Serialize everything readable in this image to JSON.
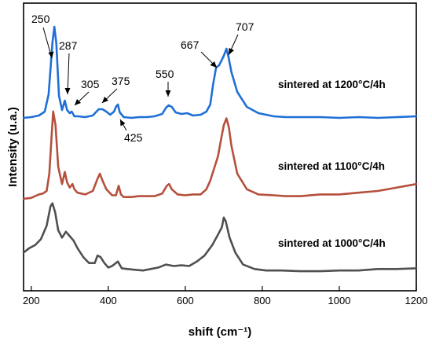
{
  "chart_data": {
    "type": "line",
    "title": "",
    "xlabel": "shift (cm⁻¹)",
    "ylabel": "Intensity (u.a.)",
    "xlim": [
      180,
      1200
    ],
    "xticks": [
      200,
      400,
      600,
      800,
      1000,
      1200
    ],
    "y_ticks_shown": false,
    "grid": false,
    "series": [
      {
        "name": "sintered at 1200°C/4h",
        "color": "#1f6fd6",
        "x": [
          180,
          200,
          220,
          235,
          245,
          255,
          260,
          265,
          272,
          280,
          287,
          293,
          300,
          305,
          312,
          322,
          340,
          360,
          375,
          385,
          395,
          405,
          415,
          420,
          425,
          430,
          440,
          460,
          480,
          500,
          520,
          540,
          550,
          557,
          565,
          575,
          590,
          605,
          620,
          640,
          655,
          665,
          672,
          680,
          688,
          695,
          700,
          707,
          712,
          720,
          735,
          760,
          790,
          830,
          860,
          900,
          950,
          1000,
          1050,
          1100,
          1150,
          1200
        ],
        "y": [
          0.02,
          0.03,
          0.05,
          0.1,
          0.32,
          0.98,
          1.18,
          0.97,
          0.3,
          0.12,
          0.24,
          0.12,
          0.08,
          0.1,
          0.04,
          0.04,
          0.03,
          0.05,
          0.13,
          0.13,
          0.1,
          0.06,
          0.1,
          0.16,
          0.19,
          0.09,
          0.03,
          0.02,
          0.03,
          0.03,
          0.04,
          0.07,
          0.15,
          0.18,
          0.16,
          0.09,
          0.07,
          0.08,
          0.05,
          0.06,
          0.1,
          0.19,
          0.44,
          0.66,
          0.69,
          0.76,
          0.81,
          0.9,
          0.8,
          0.6,
          0.35,
          0.16,
          0.08,
          0.04,
          0.03,
          0.03,
          0.03,
          0.02,
          0.03,
          0.02,
          0.03,
          0.04
        ]
      },
      {
        "name": "sintered at 1100°C/4h",
        "color": "#b5503c",
        "x": [
          180,
          200,
          210,
          220,
          230,
          240,
          247,
          253,
          257,
          263,
          270,
          280,
          287,
          293,
          300,
          307,
          312,
          320,
          340,
          360,
          372,
          378,
          385,
          395,
          410,
          420,
          427,
          433,
          440,
          460,
          480,
          500,
          520,
          540,
          552,
          558,
          565,
          580,
          600,
          620,
          640,
          655,
          665,
          675,
          685,
          693,
          700,
          707,
          713,
          720,
          735,
          760,
          790,
          830,
          860,
          900,
          950,
          1000,
          1050,
          1100,
          1150,
          1200
        ],
        "y": [
          0.01,
          0.02,
          0.04,
          0.06,
          0.07,
          0.1,
          0.3,
          0.75,
          1.02,
          0.86,
          0.38,
          0.18,
          0.32,
          0.2,
          0.14,
          0.18,
          0.12,
          0.08,
          0.06,
          0.1,
          0.24,
          0.3,
          0.22,
          0.12,
          0.05,
          0.05,
          0.16,
          0.06,
          0.03,
          0.03,
          0.04,
          0.04,
          0.04,
          0.07,
          0.16,
          0.18,
          0.12,
          0.06,
          0.05,
          0.06,
          0.06,
          0.12,
          0.22,
          0.36,
          0.5,
          0.7,
          0.86,
          0.94,
          0.84,
          0.62,
          0.3,
          0.12,
          0.06,
          0.05,
          0.04,
          0.04,
          0.06,
          0.06,
          0.08,
          0.1,
          0.14,
          0.18
        ]
      },
      {
        "name": "sintered at 1000°C/4h",
        "color": "#505050",
        "x": [
          180,
          195,
          210,
          225,
          240,
          250,
          255,
          262,
          270,
          280,
          290,
          300,
          310,
          320,
          335,
          350,
          365,
          372,
          380,
          390,
          400,
          410,
          420,
          425,
          435,
          450,
          470,
          490,
          510,
          530,
          550,
          570,
          590,
          610,
          630,
          650,
          670,
          685,
          695,
          700,
          705,
          715,
          730,
          750,
          780,
          810,
          850,
          900,
          950,
          1000,
          1050,
          1100,
          1150,
          1200
        ],
        "y": [
          0.28,
          0.34,
          0.38,
          0.46,
          0.64,
          0.9,
          0.94,
          0.82,
          0.58,
          0.48,
          0.56,
          0.5,
          0.44,
          0.34,
          0.22,
          0.14,
          0.14,
          0.24,
          0.22,
          0.14,
          0.08,
          0.1,
          0.14,
          0.16,
          0.07,
          0.06,
          0.05,
          0.04,
          0.06,
          0.08,
          0.12,
          0.1,
          0.11,
          0.1,
          0.16,
          0.24,
          0.38,
          0.52,
          0.62,
          0.75,
          0.7,
          0.48,
          0.28,
          0.12,
          0.06,
          0.04,
          0.04,
          0.03,
          0.03,
          0.04,
          0.04,
          0.06,
          0.06,
          0.07
        ]
      }
    ],
    "annotations": [
      {
        "text": "250",
        "x": 257
      },
      {
        "text": "287",
        "x": 287
      },
      {
        "text": "305",
        "x": 305
      },
      {
        "text": "375",
        "x": 375
      },
      {
        "text": "425",
        "x": 425
      },
      {
        "text": "550",
        "x": 557
      },
      {
        "text": "667",
        "x": 680
      },
      {
        "text": "707",
        "x": 707
      }
    ]
  }
}
